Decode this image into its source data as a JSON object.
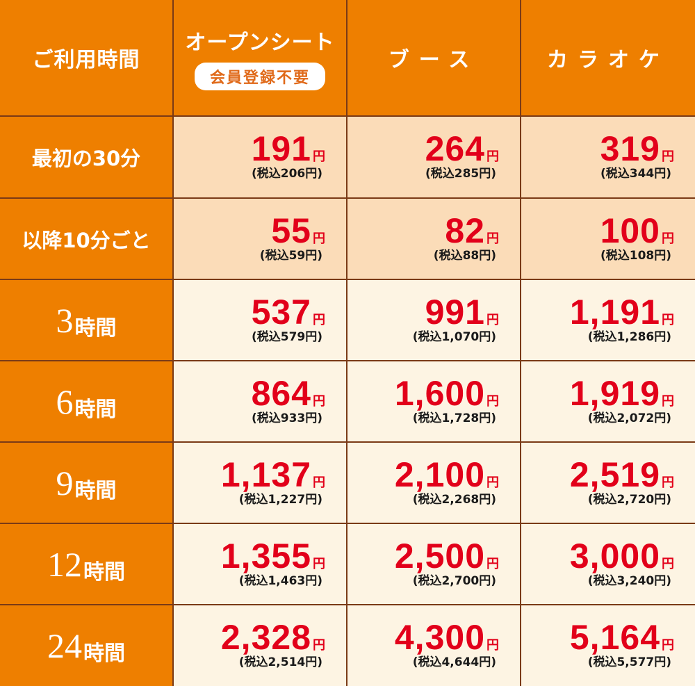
{
  "header": {
    "time_label": "ご利用時間",
    "columns": [
      {
        "title": "オープンシート",
        "badge": "会員登録不要"
      },
      {
        "title": "ブース"
      },
      {
        "title": "カラオケ"
      }
    ]
  },
  "rows": [
    {
      "label": "最初の30分",
      "prices": [
        {
          "amount": "191",
          "yen": "円",
          "tax": "(税込206円)"
        },
        {
          "amount": "264",
          "yen": "円",
          "tax": "(税込285円)"
        },
        {
          "amount": "319",
          "yen": "円",
          "tax": "(税込344円)"
        }
      ]
    },
    {
      "label": "以降10分ごと",
      "prices": [
        {
          "amount": "55",
          "yen": "円",
          "tax": "(税込59円)"
        },
        {
          "amount": "82",
          "yen": "円",
          "tax": "(税込88円)"
        },
        {
          "amount": "100",
          "yen": "円",
          "tax": "(税込108円)"
        }
      ]
    },
    {
      "label_num": "3",
      "label_suffix": "時間",
      "prices": [
        {
          "amount": "537",
          "yen": "円",
          "tax": "(税込579円)"
        },
        {
          "amount": "991",
          "yen": "円",
          "tax": "(税込1,070円)"
        },
        {
          "amount": "1,191",
          "yen": "円",
          "tax": "(税込1,286円)"
        }
      ]
    },
    {
      "label_num": "6",
      "label_suffix": "時間",
      "prices": [
        {
          "amount": "864",
          "yen": "円",
          "tax": "(税込933円)"
        },
        {
          "amount": "1,600",
          "yen": "円",
          "tax": "(税込1,728円)"
        },
        {
          "amount": "1,919",
          "yen": "円",
          "tax": "(税込2,072円)"
        }
      ]
    },
    {
      "label_num": "9",
      "label_suffix": "時間",
      "prices": [
        {
          "amount": "1,137",
          "yen": "円",
          "tax": "(税込1,227円)"
        },
        {
          "amount": "2,100",
          "yen": "円",
          "tax": "(税込2,268円)"
        },
        {
          "amount": "2,519",
          "yen": "円",
          "tax": "(税込2,720円)"
        }
      ]
    },
    {
      "label_num": "12",
      "label_suffix": "時間",
      "prices": [
        {
          "amount": "1,355",
          "yen": "円",
          "tax": "(税込1,463円)"
        },
        {
          "amount": "2,500",
          "yen": "円",
          "tax": "(税込2,700円)"
        },
        {
          "amount": "3,000",
          "yen": "円",
          "tax": "(税込3,240円)"
        }
      ]
    },
    {
      "label_num": "24",
      "label_suffix": "時間",
      "prices": [
        {
          "amount": "2,328",
          "yen": "円",
          "tax": "(税込2,514円)"
        },
        {
          "amount": "4,300",
          "yen": "円",
          "tax": "(税込4,644円)"
        },
        {
          "amount": "5,164",
          "yen": "円",
          "tax": "(税込5,577円)"
        }
      ]
    }
  ],
  "colors": {
    "header_orange": "#ee7f00",
    "price_red": "#e2001a",
    "light_row": "#fbdcb8",
    "cream_row": "#fdf4e3",
    "border": "#7a3a16"
  }
}
